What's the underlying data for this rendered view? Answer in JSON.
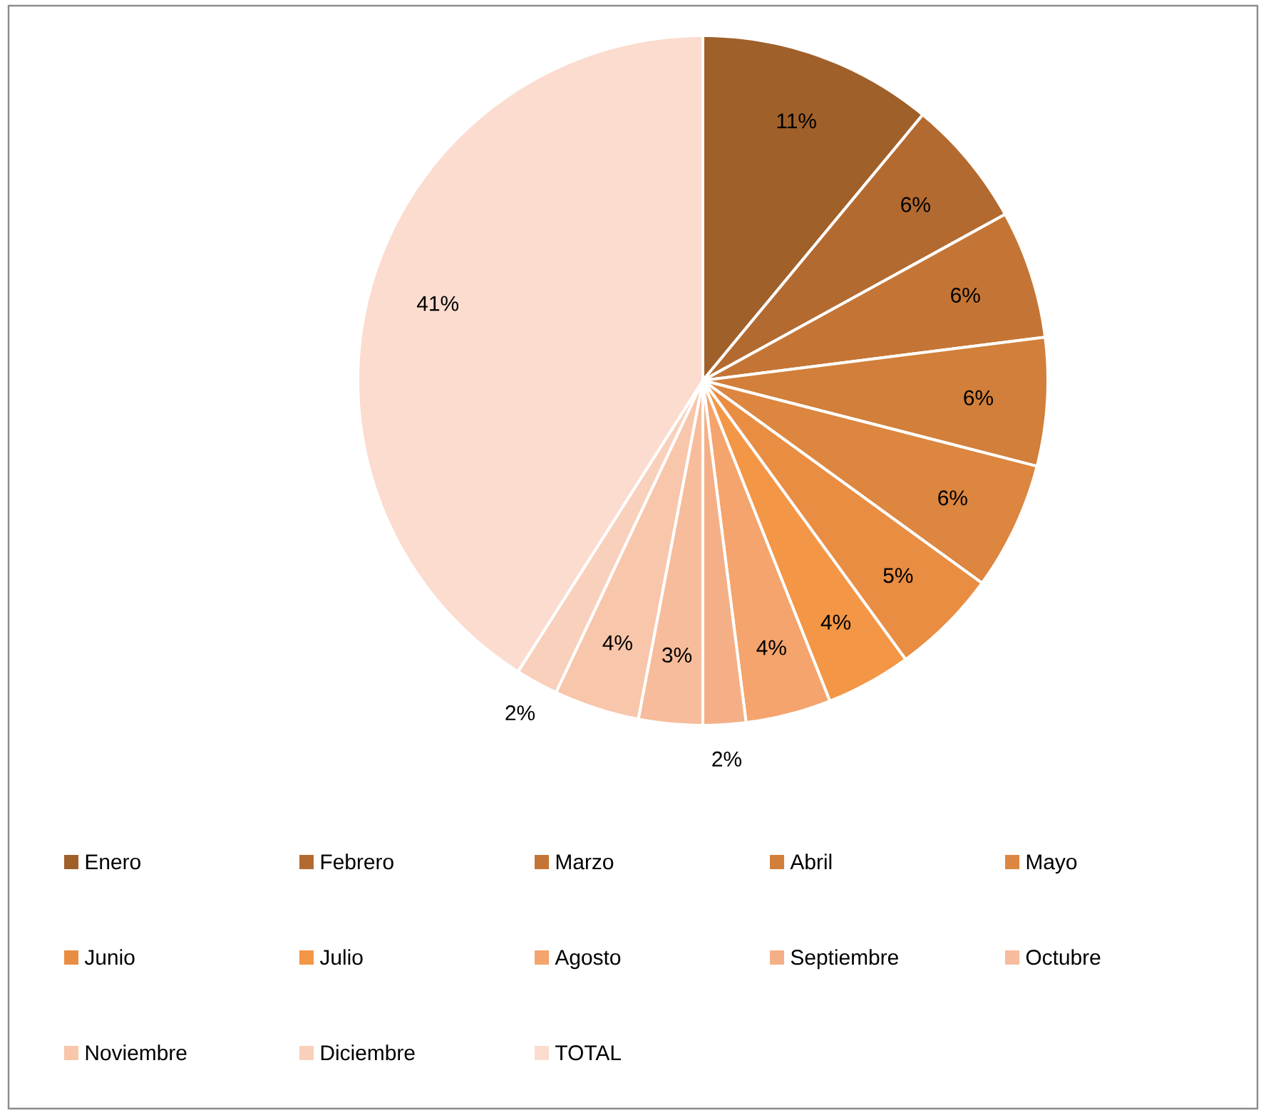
{
  "chart_data": {
    "type": "pie",
    "categories": [
      "Enero",
      "Febrero",
      "Marzo",
      "Abril",
      "Mayo",
      "Junio",
      "Julio",
      "Agosto",
      "Septiembre",
      "Octubre",
      "Noviembre",
      "Diciembre",
      "TOTAL"
    ],
    "values": [
      11,
      6,
      6,
      6,
      6,
      5,
      4,
      4,
      2,
      3,
      4,
      2,
      41
    ],
    "value_labels": [
      "11%",
      "6%",
      "6%",
      "6%",
      "6%",
      "5%",
      "4%",
      "4%",
      "2%",
      "3%",
      "4%",
      "2%",
      "41%"
    ],
    "colors": [
      "#a0602a",
      "#b36a30",
      "#c47535",
      "#d17f3a",
      "#dc8640",
      "#e98d42",
      "#f39646",
      "#f4a46c",
      "#f5af87",
      "#f6bc9b",
      "#f8c6aa",
      "#f9d0bb",
      "#fbdccf"
    ],
    "legend": "bottom"
  }
}
